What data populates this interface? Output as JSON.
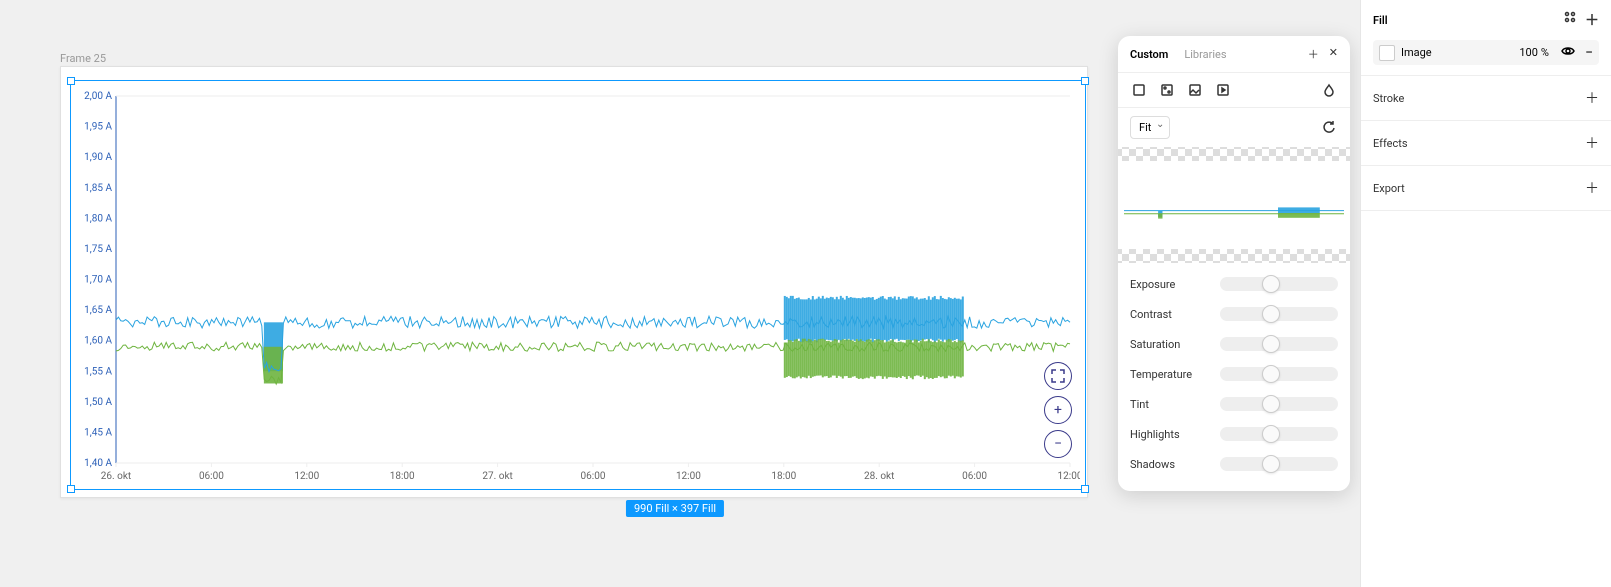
{
  "canvas": {
    "frame_label": "Frame 25",
    "selection_size": "990 Fill × 397 Fill"
  },
  "chart": {
    "type": "line",
    "y_axis": {
      "min": 1.4,
      "max": 2.0,
      "step": 0.05,
      "unit": "A",
      "labels": [
        "2,00 A",
        "1,95 A",
        "1,90 A",
        "1,85 A",
        "1,80 A",
        "1,75 A",
        "1,70 A",
        "1,65 A",
        "1,60 A",
        "1,55 A",
        "1,50 A",
        "1,45 A",
        "1,40 A"
      ],
      "label_color": "#2b5fb7",
      "label_fontsize": 10
    },
    "x_axis": {
      "labels": [
        "26. okt",
        "06:00",
        "12:00",
        "18:00",
        "27. okt",
        "06:00",
        "12:00",
        "18:00",
        "28. okt",
        "06:00",
        "12:00"
      ],
      "label_color": "#666",
      "label_fontsize": 10
    },
    "grid_color": "#eeeeee",
    "axis_color": "#2b5fb7",
    "background_color": "#ffffff",
    "series": [
      {
        "name": "blue",
        "color": "#29a3e0",
        "line_width": 1,
        "baseline": 1.63,
        "noise_amplitude": 0.02,
        "dips": [
          {
            "x_start": 0.155,
            "x_end": 0.175,
            "low": 1.55
          }
        ],
        "thick_bands": [
          {
            "x_start": 0.7,
            "x_end": 0.89,
            "low": 1.6,
            "high": 1.67
          }
        ]
      },
      {
        "name": "green",
        "color": "#6eb43f",
        "line_width": 1,
        "baseline": 1.59,
        "noise_amplitude": 0.015,
        "dips": [
          {
            "x_start": 0.155,
            "x_end": 0.175,
            "low": 1.53
          }
        ],
        "thick_bands": [
          {
            "x_start": 0.7,
            "x_end": 0.89,
            "low": 1.54,
            "high": 1.6
          }
        ]
      }
    ],
    "zoom_controls": {
      "expand": true,
      "zoom_in": "+",
      "zoom_out": "−"
    }
  },
  "fill_popup": {
    "tabs": {
      "custom": "Custom",
      "libraries": "Libraries",
      "active": "custom"
    },
    "type_icons": [
      "solid",
      "gradient",
      "image",
      "video"
    ],
    "fit_mode": "Fit",
    "adjustments": [
      {
        "label": "Exposure",
        "value": 0.5
      },
      {
        "label": "Contrast",
        "value": 0.5
      },
      {
        "label": "Saturation",
        "value": 0.5
      },
      {
        "label": "Temperature",
        "value": 0.5
      },
      {
        "label": "Tint",
        "value": 0.5
      },
      {
        "label": "Highlights",
        "value": 0.5
      },
      {
        "label": "Shadows",
        "value": 0.5
      }
    ]
  },
  "right_panel": {
    "fill_section": {
      "title": "Fill",
      "type_label": "Image",
      "opacity_value": "100",
      "opacity_unit": "%"
    },
    "stroke_label": "Stroke",
    "effects_label": "Effects",
    "export_label": "Export"
  }
}
